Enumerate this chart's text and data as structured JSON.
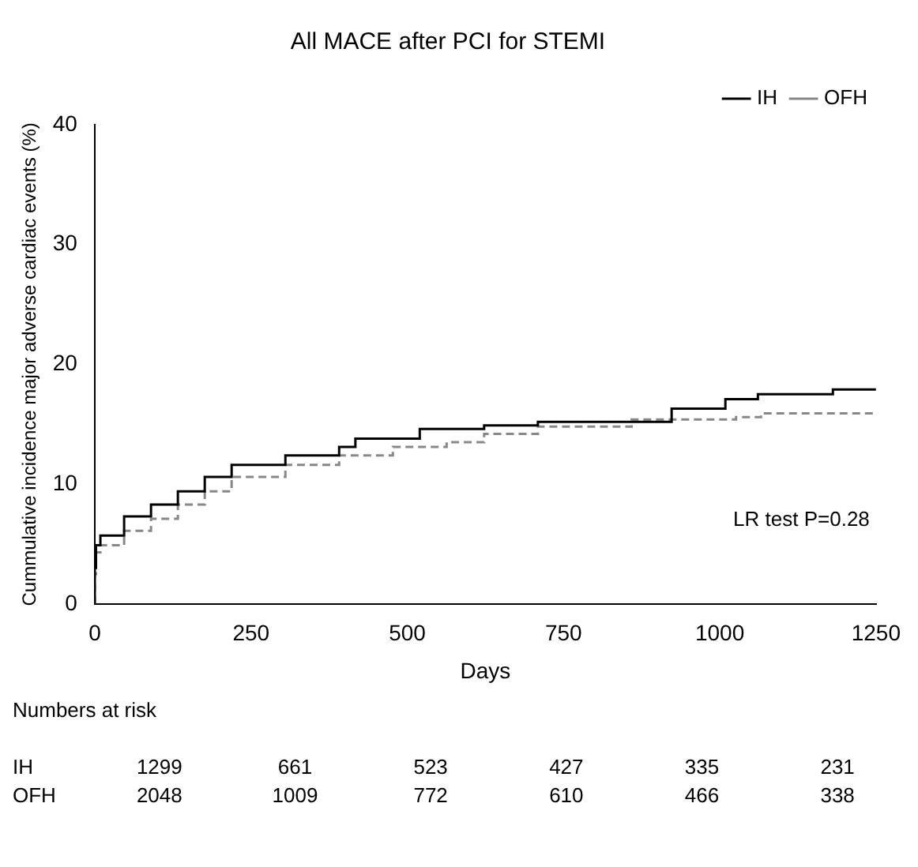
{
  "chart_data": {
    "type": "step",
    "title": "All MACE after PCI for STEMI",
    "xlabel": "Days",
    "ylabel": "Cummulative incidence major adverse cardiac events (%)",
    "xlim": [
      0,
      1250
    ],
    "xticks": [
      0,
      250,
      500,
      750,
      1000,
      1250
    ],
    "ylim": [
      0,
      40
    ],
    "yticks": [
      0,
      10,
      20,
      30,
      40
    ],
    "grid": false,
    "legend": "top right",
    "series": [
      {
        "name": "IH",
        "color": "#000000",
        "line_style": "solid",
        "x": [
          0,
          2,
          9,
          47,
          90,
          133,
          176,
          219,
          305,
          391,
          417,
          520,
          623,
          709,
          923,
          1009,
          1061,
          1181,
          1211,
          1250
        ],
        "values": [
          0,
          3,
          4.9,
          5.7,
          7.3,
          8.3,
          9.4,
          10.6,
          11.6,
          12.4,
          13.1,
          13.8,
          14.6,
          14.9,
          15.2,
          16.3,
          17.1,
          17.5,
          17.9,
          17.9
        ]
      },
      {
        "name": "OFH",
        "color": "#888888",
        "line_style": "dashed",
        "x": [
          0,
          2,
          9,
          47,
          90,
          133,
          176,
          219,
          305,
          391,
          477,
          563,
          623,
          709,
          859,
          1026,
          1066,
          1250
        ],
        "values": [
          0,
          2.5,
          4.3,
          4.9,
          6.1,
          7.1,
          8.3,
          9.4,
          10.6,
          11.6,
          12.4,
          13.1,
          13.5,
          14.2,
          14.8,
          15.4,
          15.6,
          15.9
        ]
      }
    ],
    "annotations": [
      "LR test P=0.28",
      "Numbers at risk",
      "IH 1299 661 523 427 335 231",
      "OFH 2048 1009 772 610 466 338"
    ]
  }
}
